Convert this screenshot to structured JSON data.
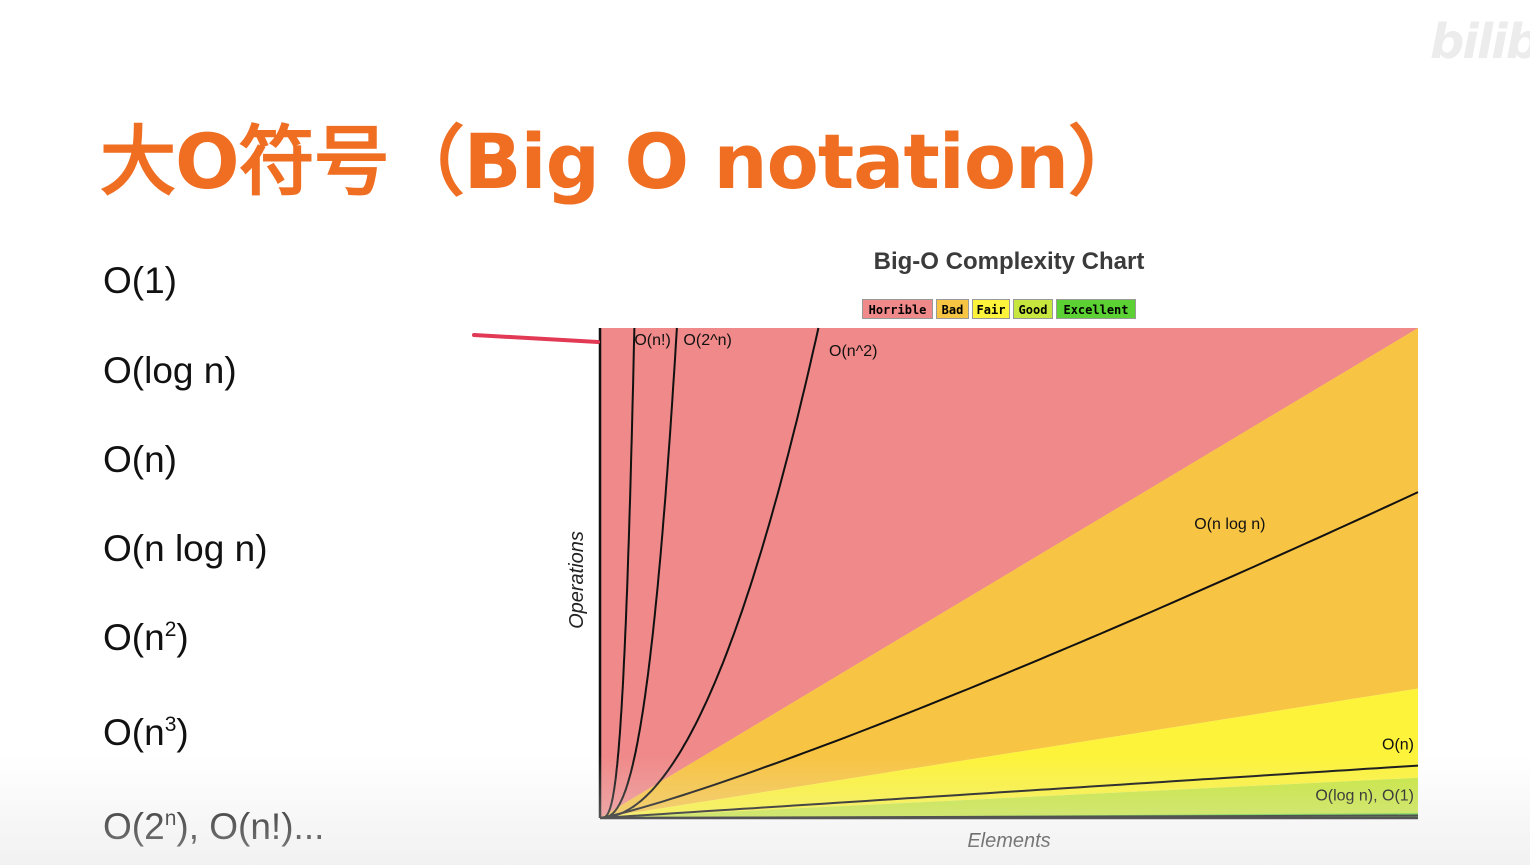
{
  "slide": {
    "title": "大O符号（Big O notation）",
    "watermark": "bilibili"
  },
  "complexity_list": [
    {
      "base": "O(1)"
    },
    {
      "base": "O(log n)"
    },
    {
      "base": "O(n)"
    },
    {
      "base": "O(n log n)"
    },
    {
      "base": "O(n",
      "sup": "2",
      "tail": ")"
    },
    {
      "base": "O(n",
      "sup": "3",
      "tail": ")"
    },
    {
      "base": "O(2",
      "sup": "n",
      "tail": "), O(n!)..."
    }
  ],
  "chart_data": {
    "type": "line",
    "title": "Big-O Complexity Chart",
    "xlabel": "Elements",
    "ylabel": "Operations",
    "legend": {
      "placement": "top",
      "entries": [
        {
          "label": "Horrible",
          "color": "#f08989"
        },
        {
          "label": "Bad",
          "color": "#f7c443"
        },
        {
          "label": "Fair",
          "color": "#fcf33a"
        },
        {
          "label": "Good",
          "color": "#c7e63e"
        },
        {
          "label": "Excellent",
          "color": "#5bd133"
        }
      ]
    },
    "xlim": [
      0,
      100
    ],
    "ylim": [
      0,
      1000
    ],
    "grid": false,
    "series": [
      {
        "name": "O(n!)",
        "label_x": 4.2,
        "label_y": 965
      },
      {
        "name": "O(2^n)",
        "label_x": 10.2,
        "label_y": 965
      },
      {
        "name": "O(n^2)",
        "label_x": 28,
        "label_y": 943
      },
      {
        "name": "O(n log n)",
        "label_x": 77,
        "label_y": 590
      },
      {
        "name": "O(n)",
        "label_x": 95.3,
        "label_y": 140
      },
      {
        "name": "O(log n), O(1)",
        "label_x": 87.5,
        "label_y": 36
      }
    ]
  }
}
